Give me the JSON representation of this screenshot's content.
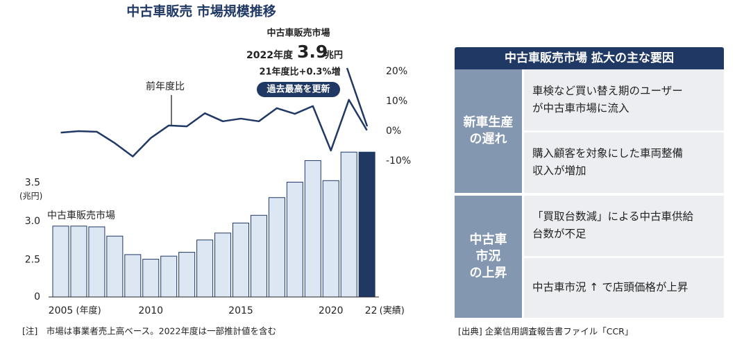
{
  "chart_data": {
    "type": "bar",
    "title": "中古車販売 市場規模推移",
    "y_unit": "(兆円)",
    "categories": [
      "2005",
      null,
      null,
      null,
      null,
      "2010",
      null,
      null,
      null,
      null,
      "2015",
      null,
      null,
      null,
      null,
      "2020",
      null,
      "22"
    ],
    "x_annotations": [
      "(年度)",
      "(実績)"
    ],
    "series": [
      {
        "name": "中古車販売市場",
        "type": "bar",
        "color": "#dde6f3",
        "stroke": "#1f3864",
        "highlight_color": "#1f3864",
        "values": [
          2.94,
          2.94,
          2.93,
          2.81,
          2.57,
          2.51,
          2.55,
          2.6,
          2.76,
          2.85,
          2.98,
          3.08,
          3.31,
          3.51,
          3.79,
          3.53,
          3.9,
          3.9
        ]
      },
      {
        "name": "前年度比",
        "type": "line",
        "axis": "y2",
        "color": "#1f3864",
        "values": [
          -0.5,
          0,
          -0.2,
          -4,
          -8.5,
          -2.3,
          1.9,
          1.6,
          6,
          3.3,
          4.2,
          3.3,
          7.7,
          5.8,
          8.4,
          -6.5,
          10.5,
          0.3
        ]
      }
    ],
    "ylim": [
      2.02,
      3.92
    ],
    "axis_break": true,
    "yticks": [
      0,
      2.5,
      {
        "value": 3,
        "label": "3.0"
      },
      3.5
    ],
    "y2lim": [
      -10,
      20
    ],
    "y2ticks": [
      {
        "value": 20,
        "label": "20%"
      },
      {
        "value": 10,
        "label": "10%"
      },
      {
        "value": 0,
        "label": "0%"
      },
      {
        "value": -10,
        "label": "-10%"
      }
    ],
    "callout": {
      "title": "中古車販売市場",
      "year": "2022年度",
      "unit": "兆円",
      "change": "21年度比+0.3%増",
      "badge": "過去最高を更新"
    },
    "note": "[注]　市場は事業者売上高ベース。2022年度は一部推計値を含む"
  },
  "table": {
    "title": "中古車販売市場 拡大の主な要因",
    "sections": [
      {
        "label": [
          "新車生産",
          "の遅れ"
        ],
        "items": [
          [
            "車検など買い替え期のユーザー",
            "が中古車市場に流入"
          ],
          [
            "購入顧客を対象にした車両整備",
            "収入が増加"
          ]
        ]
      },
      {
        "label": [
          "中古車",
          "市況",
          "の上昇"
        ],
        "items": [
          [
            "「買取台数減」による中古車供給",
            "台数が不足"
          ],
          [
            "中古車市況 ↑ で店頭価格が上昇"
          ]
        ]
      }
    ],
    "source": "[出典] 企業信用調査報告書ファイル「CCR」"
  }
}
